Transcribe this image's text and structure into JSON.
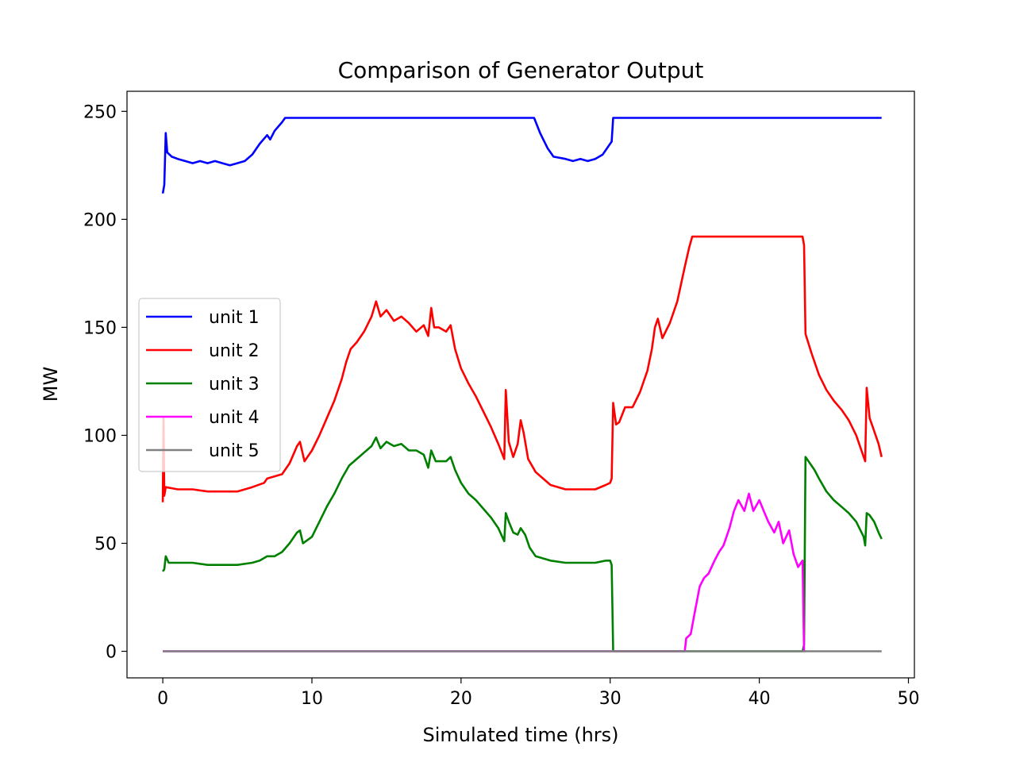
{
  "chart_data": {
    "type": "line",
    "title": "Comparison of Generator Output",
    "xlabel": "Simulated time (hrs)",
    "ylabel": "MW",
    "xlim": [
      -2.4,
      50.4
    ],
    "ylim": [
      -12.3,
      259.3
    ],
    "xticks": [
      0,
      10,
      20,
      30,
      40,
      50
    ],
    "yticks": [
      0,
      50,
      100,
      150,
      200,
      250
    ],
    "legend_position": "center-left",
    "grid": false,
    "series": [
      {
        "name": "unit 1",
        "color": "#0000ff",
        "points": [
          [
            0,
            212
          ],
          [
            0.1,
            216
          ],
          [
            0.2,
            240
          ],
          [
            0.3,
            231
          ],
          [
            0.6,
            229
          ],
          [
            1,
            228
          ],
          [
            1.5,
            227
          ],
          [
            2,
            226
          ],
          [
            2.5,
            227
          ],
          [
            3,
            226
          ],
          [
            3.5,
            227
          ],
          [
            4,
            226
          ],
          [
            4.5,
            225
          ],
          [
            5,
            226
          ],
          [
            5.5,
            227
          ],
          [
            6,
            230
          ],
          [
            6.5,
            235
          ],
          [
            7,
            239
          ],
          [
            7.2,
            237
          ],
          [
            7.5,
            241
          ],
          [
            8,
            245
          ],
          [
            8.2,
            247
          ],
          [
            10,
            247
          ],
          [
            15,
            247
          ],
          [
            20,
            247
          ],
          [
            24.9,
            247
          ],
          [
            25.3,
            240
          ],
          [
            25.8,
            233
          ],
          [
            26.2,
            229
          ],
          [
            27,
            228
          ],
          [
            27.5,
            227
          ],
          [
            28,
            228
          ],
          [
            28.5,
            227
          ],
          [
            29,
            228
          ],
          [
            29.5,
            230
          ],
          [
            29.9,
            234
          ],
          [
            30.1,
            236
          ],
          [
            30.2,
            247
          ],
          [
            35,
            247
          ],
          [
            40,
            247
          ],
          [
            45,
            247
          ],
          [
            48.2,
            247
          ]
        ]
      },
      {
        "name": "unit 2",
        "color": "#ff0000",
        "points": [
          [
            0,
            69
          ],
          [
            0.05,
            108
          ],
          [
            0.1,
            72
          ],
          [
            0.2,
            76
          ],
          [
            1,
            75
          ],
          [
            2,
            75
          ],
          [
            3,
            74
          ],
          [
            4,
            74
          ],
          [
            5,
            74
          ],
          [
            6,
            76
          ],
          [
            6.8,
            78
          ],
          [
            7,
            80
          ],
          [
            8,
            82
          ],
          [
            8.5,
            87
          ],
          [
            9,
            95
          ],
          [
            9.2,
            97
          ],
          [
            9.5,
            88
          ],
          [
            10,
            93
          ],
          [
            10.5,
            100
          ],
          [
            11,
            108
          ],
          [
            11.5,
            116
          ],
          [
            12,
            126
          ],
          [
            12.3,
            134
          ],
          [
            12.6,
            140
          ],
          [
            13,
            143
          ],
          [
            13.5,
            148
          ],
          [
            14,
            155
          ],
          [
            14.3,
            162
          ],
          [
            14.6,
            155
          ],
          [
            15,
            158
          ],
          [
            15.5,
            153
          ],
          [
            16,
            155
          ],
          [
            16.5,
            152
          ],
          [
            17,
            148
          ],
          [
            17.5,
            151
          ],
          [
            17.8,
            146
          ],
          [
            18,
            159
          ],
          [
            18.2,
            150
          ],
          [
            18.5,
            150
          ],
          [
            19,
            148
          ],
          [
            19.3,
            151
          ],
          [
            19.6,
            140
          ],
          [
            20,
            131
          ],
          [
            20.5,
            124
          ],
          [
            21,
            118
          ],
          [
            21.5,
            111
          ],
          [
            22,
            104
          ],
          [
            22.5,
            96
          ],
          [
            22.9,
            89
          ],
          [
            23,
            121
          ],
          [
            23.2,
            97
          ],
          [
            23.5,
            90
          ],
          [
            23.8,
            96
          ],
          [
            24,
            107
          ],
          [
            24.2,
            101
          ],
          [
            24.5,
            89
          ],
          [
            25,
            83
          ],
          [
            25.5,
            80
          ],
          [
            26,
            77
          ],
          [
            26.5,
            76
          ],
          [
            27,
            75
          ],
          [
            28,
            75
          ],
          [
            29,
            75
          ],
          [
            29.7,
            77
          ],
          [
            30,
            78
          ],
          [
            30.1,
            80
          ],
          [
            30.2,
            115
          ],
          [
            30.4,
            105
          ],
          [
            30.6,
            106
          ],
          [
            31,
            113
          ],
          [
            31.5,
            113
          ],
          [
            32,
            120
          ],
          [
            32.5,
            130
          ],
          [
            32.8,
            140
          ],
          [
            33,
            150
          ],
          [
            33.2,
            154
          ],
          [
            33.5,
            145
          ],
          [
            34,
            152
          ],
          [
            34.5,
            162
          ],
          [
            35,
            178
          ],
          [
            35.3,
            187
          ],
          [
            35.5,
            192
          ],
          [
            38,
            192
          ],
          [
            40,
            192
          ],
          [
            42,
            192
          ],
          [
            42.9,
            192
          ],
          [
            43,
            188
          ],
          [
            43.1,
            147
          ],
          [
            43.5,
            138
          ],
          [
            44,
            128
          ],
          [
            44.5,
            121
          ],
          [
            45,
            116
          ],
          [
            45.5,
            112
          ],
          [
            46,
            107
          ],
          [
            46.5,
            100
          ],
          [
            47,
            90
          ],
          [
            47.1,
            88
          ],
          [
            47.2,
            122
          ],
          [
            47.4,
            108
          ],
          [
            47.6,
            104
          ],
          [
            48,
            96
          ],
          [
            48.2,
            90
          ]
        ]
      },
      {
        "name": "unit 3",
        "color": "#008000",
        "points": [
          [
            0,
            37
          ],
          [
            0.1,
            38
          ],
          [
            0.2,
            44
          ],
          [
            0.4,
            41
          ],
          [
            1,
            41
          ],
          [
            2,
            41
          ],
          [
            3,
            40
          ],
          [
            4,
            40
          ],
          [
            5,
            40
          ],
          [
            6,
            41
          ],
          [
            6.5,
            42
          ],
          [
            7,
            44
          ],
          [
            7.5,
            44
          ],
          [
            8,
            46
          ],
          [
            8.5,
            50
          ],
          [
            9,
            55
          ],
          [
            9.2,
            56
          ],
          [
            9.4,
            50
          ],
          [
            10,
            53
          ],
          [
            10.5,
            60
          ],
          [
            11,
            67
          ],
          [
            11.5,
            73
          ],
          [
            12,
            80
          ],
          [
            12.5,
            86
          ],
          [
            13,
            89
          ],
          [
            13.5,
            92
          ],
          [
            14,
            95
          ],
          [
            14.3,
            99
          ],
          [
            14.6,
            94
          ],
          [
            15,
            97
          ],
          [
            15.5,
            95
          ],
          [
            16,
            96
          ],
          [
            16.5,
            93
          ],
          [
            17,
            93
          ],
          [
            17.5,
            91
          ],
          [
            17.8,
            85
          ],
          [
            18,
            93
          ],
          [
            18.3,
            88
          ],
          [
            18.6,
            88
          ],
          [
            19,
            88
          ],
          [
            19.3,
            90
          ],
          [
            19.6,
            84
          ],
          [
            20,
            78
          ],
          [
            20.5,
            73
          ],
          [
            21,
            70
          ],
          [
            21.5,
            66
          ],
          [
            22,
            62
          ],
          [
            22.5,
            57
          ],
          [
            22.9,
            51
          ],
          [
            23,
            64
          ],
          [
            23.2,
            60
          ],
          [
            23.5,
            55
          ],
          [
            23.8,
            54
          ],
          [
            24,
            57
          ],
          [
            24.3,
            54
          ],
          [
            24.6,
            48
          ],
          [
            25,
            44
          ],
          [
            25.5,
            43
          ],
          [
            26,
            42
          ],
          [
            27,
            41
          ],
          [
            28,
            41
          ],
          [
            29,
            41
          ],
          [
            29.7,
            42
          ],
          [
            30,
            42
          ],
          [
            30.1,
            40
          ],
          [
            30.2,
            0
          ],
          [
            35,
            0
          ],
          [
            40,
            0
          ],
          [
            42.9,
            0
          ],
          [
            43,
            3
          ],
          [
            43.1,
            90
          ],
          [
            43.3,
            88
          ],
          [
            43.7,
            84
          ],
          [
            44,
            80
          ],
          [
            44.5,
            74
          ],
          [
            45,
            70
          ],
          [
            45.5,
            67
          ],
          [
            46,
            64
          ],
          [
            46.5,
            60
          ],
          [
            47,
            53
          ],
          [
            47.1,
            49
          ],
          [
            47.2,
            64
          ],
          [
            47.4,
            63
          ],
          [
            47.7,
            60
          ],
          [
            48,
            55
          ],
          [
            48.2,
            52
          ]
        ]
      },
      {
        "name": "unit 4",
        "color": "#ff00ff",
        "points": [
          [
            0,
            0
          ],
          [
            30,
            0
          ],
          [
            35,
            0
          ],
          [
            35.1,
            6
          ],
          [
            35.4,
            8
          ],
          [
            35.7,
            19
          ],
          [
            36,
            30
          ],
          [
            36.3,
            34
          ],
          [
            36.6,
            36
          ],
          [
            37,
            42
          ],
          [
            37.3,
            46
          ],
          [
            37.6,
            49
          ],
          [
            38,
            57
          ],
          [
            38.3,
            65
          ],
          [
            38.6,
            70
          ],
          [
            39,
            65
          ],
          [
            39.3,
            73
          ],
          [
            39.6,
            65
          ],
          [
            40,
            70
          ],
          [
            40.3,
            65
          ],
          [
            40.6,
            60
          ],
          [
            41,
            55
          ],
          [
            41.3,
            60
          ],
          [
            41.6,
            50
          ],
          [
            42,
            56
          ],
          [
            42.3,
            45
          ],
          [
            42.6,
            39
          ],
          [
            42.9,
            42
          ],
          [
            43,
            0
          ],
          [
            43.1,
            0
          ]
        ]
      },
      {
        "name": "unit 5",
        "color": "#808080",
        "points": [
          [
            0,
            0
          ],
          [
            48.2,
            0
          ]
        ]
      }
    ]
  }
}
